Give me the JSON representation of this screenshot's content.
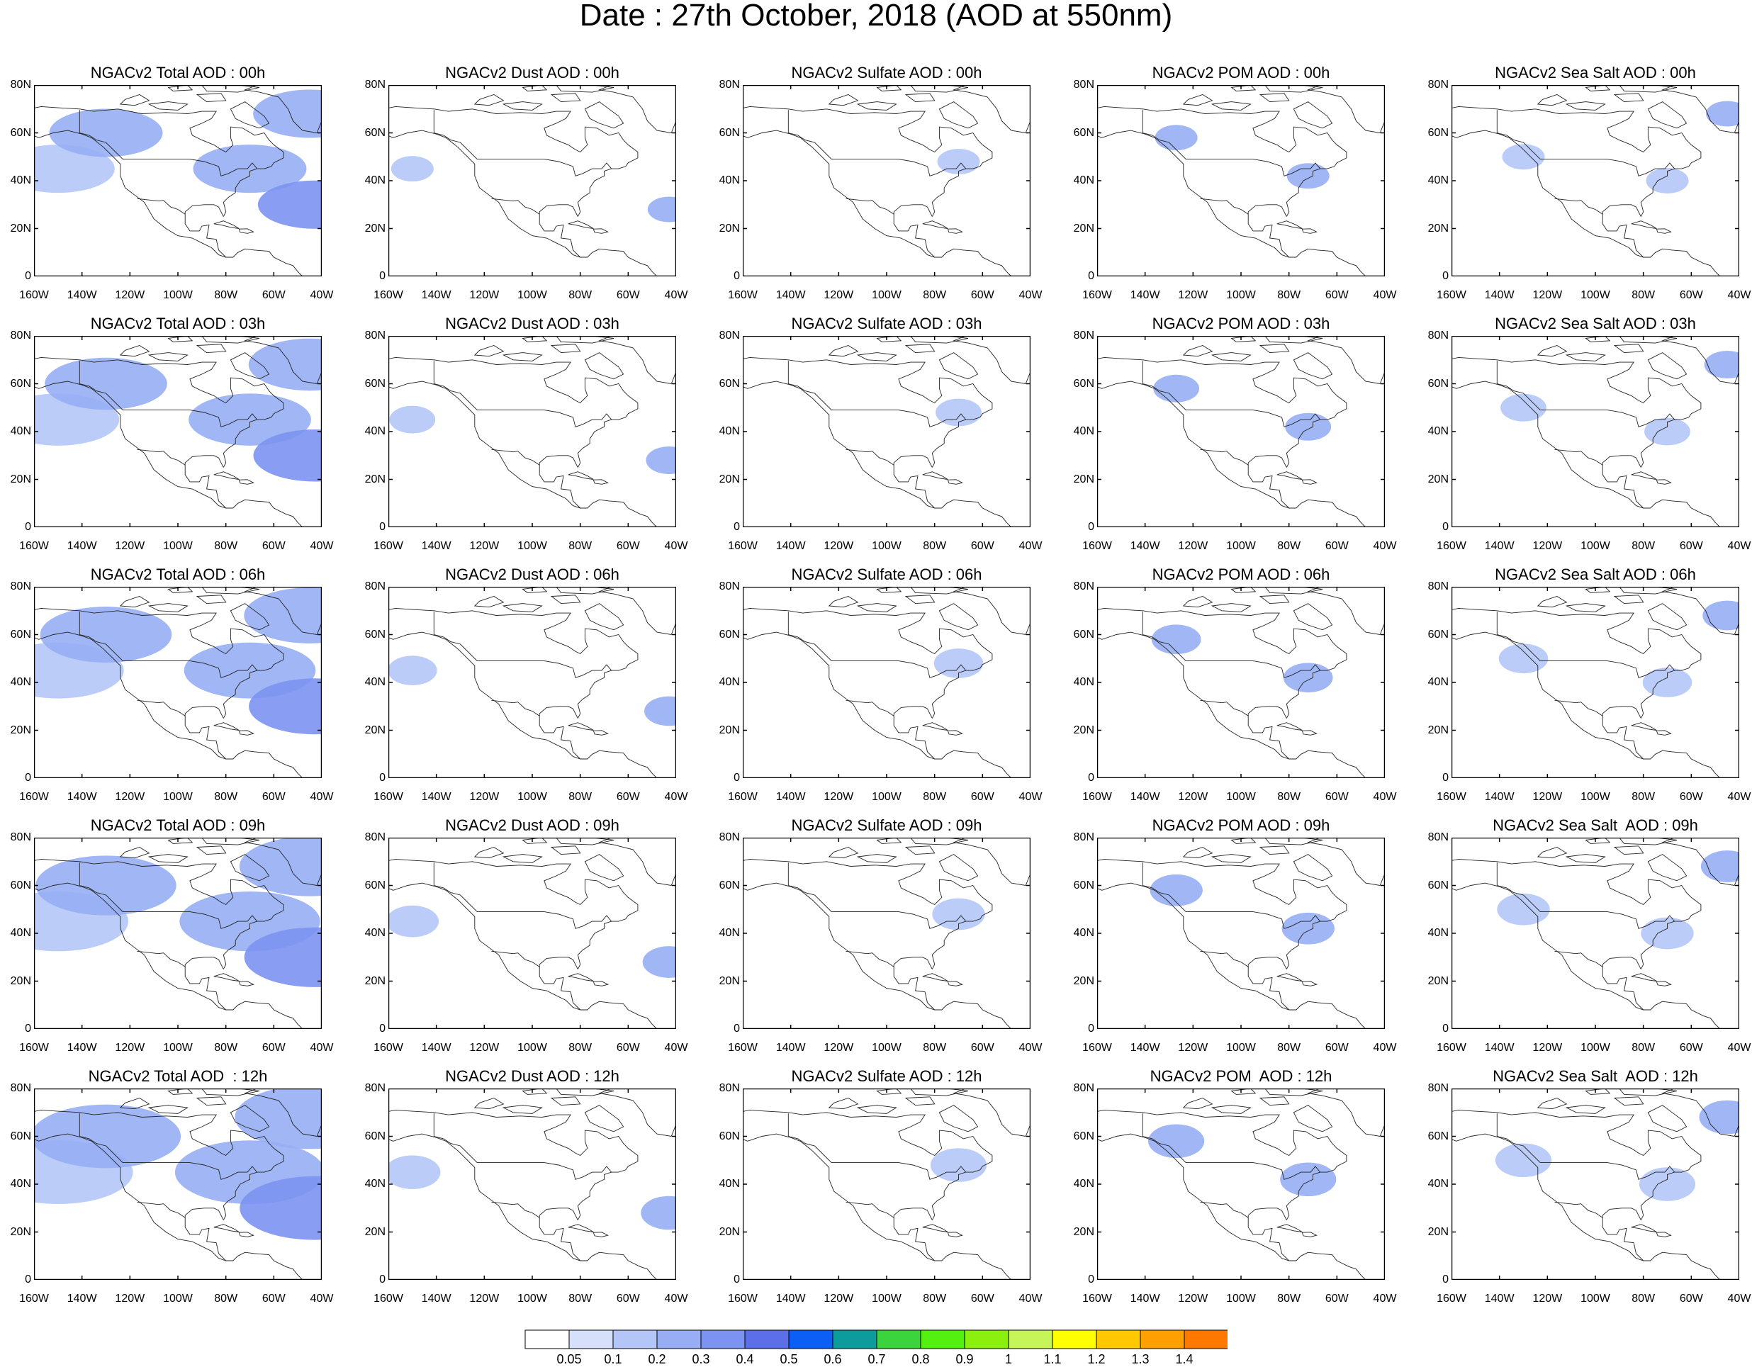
{
  "figure": {
    "title": "Date : 27th October, 2018 (AOD at 550nm)"
  },
  "panel_titles": [
    [
      "NGACv2 Total AOD : 00h",
      "NGACv2 Dust AOD : 00h",
      "NGACv2 Sulfate AOD : 00h",
      "NGACv2 POM AOD : 00h",
      "NGACv2 Sea Salt AOD : 00h"
    ],
    [
      "NGACv2 Total AOD : 03h",
      "NGACv2 Dust AOD : 03h",
      "NGACv2 Sulfate AOD : 03h",
      "NGACv2 POM AOD : 03h",
      "NGACv2 Sea Salt AOD : 03h"
    ],
    [
      "NGACv2 Total AOD : 06h",
      "NGACv2 Dust AOD : 06h",
      "NGACv2 Sulfate AOD : 06h",
      "NGACv2 POM AOD : 06h",
      "NGACv2 Sea Salt AOD : 06h"
    ],
    [
      "NGACv2 Total AOD : 09h",
      "NGACv2 Dust AOD : 09h",
      "NGACv2 Sulfate AOD : 09h",
      "NGACv2 POM AOD : 09h",
      "NGACv2 Sea Salt  AOD : 09h"
    ],
    [
      "NGACv2 Total AOD  : 12h",
      "NGACv2 Dust AOD : 12h",
      "NGACv2 Sulfate AOD : 12h",
      "NGACv2 POM  AOD : 12h",
      "NGACv2 Sea Salt  AOD : 12h"
    ]
  ],
  "axes": {
    "lon_ticks": [
      "160W",
      "140W",
      "120W",
      "100W",
      "80W",
      "60W",
      "40W"
    ],
    "lat_ticks": [
      "0",
      "20N",
      "40N",
      "60N",
      "80N"
    ],
    "lon_range": [
      -160,
      -40
    ],
    "lat_range": [
      0,
      80
    ]
  },
  "colorbar": {
    "labels": [
      "0.05",
      "0.1",
      "0.2",
      "0.3",
      "0.4",
      "0.5",
      "0.6",
      "0.7",
      "0.8",
      "0.9",
      "1",
      "1.1",
      "1.2",
      "1.3",
      "1.4"
    ],
    "colors": [
      "#ffffff",
      "#d6e0fb",
      "#b4c6f7",
      "#97aef4",
      "#7c93f1",
      "#5d6ee9",
      "#0b5ff5",
      "#0e9b9b",
      "#3cd43c",
      "#54f00f",
      "#8cf00f",
      "#c6f55a",
      "#ffff00",
      "#ffc800",
      "#ffa000",
      "#ff7800",
      "#ff2a14"
    ]
  },
  "chart_data": {
    "type": "heatmap",
    "title": "Date : 27th October, 2018 (AOD at 550nm)",
    "variable": "AOD at 550nm",
    "rows_forecast_hour": [
      "00h",
      "03h",
      "06h",
      "09h",
      "12h"
    ],
    "columns_species": [
      "Total",
      "Dust",
      "Sulfate",
      "POM",
      "Sea Salt"
    ],
    "domain": {
      "lon": [
        -160,
        -40
      ],
      "lat": [
        0,
        80
      ]
    },
    "levels": [
      0.05,
      0.1,
      0.2,
      0.3,
      0.4,
      0.5,
      0.6,
      0.7,
      0.8,
      0.9,
      1,
      1.1,
      1.2,
      1.3,
      1.4
    ],
    "features": {
      "Total": [
        {
          "lon": -150,
          "lat": 45,
          "aod": 0.1
        },
        {
          "lon": -130,
          "lat": 60,
          "aod": 0.2
        },
        {
          "lon": -70,
          "lat": 45,
          "aod": 0.2
        },
        {
          "lon": -45,
          "lat": 68,
          "aod": 0.2
        },
        {
          "lon": -43,
          "lat": 30,
          "aod": 0.3
        }
      ],
      "Dust": [
        {
          "lon": -150,
          "lat": 45,
          "aod": 0.1
        },
        {
          "lon": -43,
          "lat": 28,
          "aod": 0.2
        }
      ],
      "Sulfate": [
        {
          "lon": -70,
          "lat": 48,
          "aod": 0.1
        }
      ],
      "POM": [
        {
          "lon": -127,
          "lat": 58,
          "aod": 0.2
        },
        {
          "lon": -72,
          "lat": 42,
          "aod": 0.2
        }
      ],
      "Sea Salt": [
        {
          "lon": -45,
          "lat": 68,
          "aod": 0.2
        },
        {
          "lon": -130,
          "lat": 50,
          "aod": 0.1
        },
        {
          "lon": -70,
          "lat": 40,
          "aod": 0.1
        }
      ]
    }
  }
}
